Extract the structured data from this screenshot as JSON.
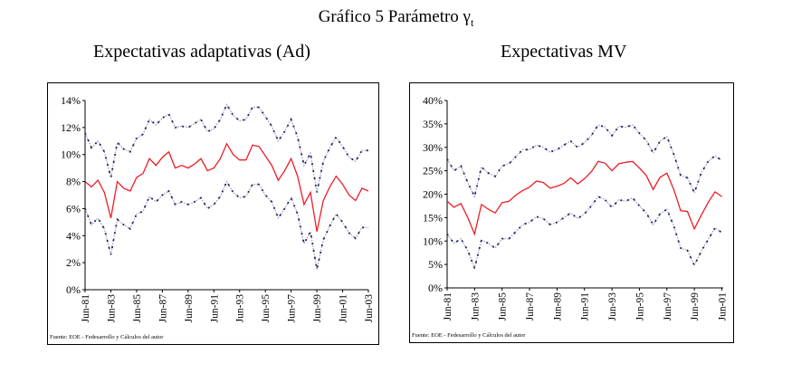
{
  "title": {
    "text": "Gráfico 5 Parámetro γ",
    "subscript": "t"
  },
  "colors": {
    "center": "#ee1c25",
    "band": "#1a1f6e",
    "band_light": "#9a9aa8"
  },
  "chart_data": [
    {
      "type": "line",
      "title": "Expectativas adaptativas (Ad)",
      "source": "Fuente: EOE - Fedesarrollo y Cálculos del autor",
      "xlabel": "",
      "ylabel": "",
      "xlim": [
        1981.5,
        2003.5
      ],
      "ylim": [
        0,
        14
      ],
      "yticks": [
        0,
        2,
        4,
        6,
        8,
        10,
        12,
        14
      ],
      "ytick_labels": [
        "0%",
        "2%",
        "4%",
        "6%",
        "8%",
        "10%",
        "12%",
        "14%"
      ],
      "xticks": [
        1981.5,
        1983.5,
        1985.5,
        1987.5,
        1989.5,
        1991.5,
        1993.5,
        1995.5,
        1997.5,
        1999.5,
        2001.5,
        2003.5
      ],
      "xtick_labels": [
        "Jun-81",
        "Jun-83",
        "Jun-85",
        "Jun-87",
        "Jun-89",
        "Jun-91",
        "Jun-93",
        "Jun-95",
        "Jun-97",
        "Jun-99",
        "Jun-01",
        "Jun-03"
      ],
      "x_start": 1981.5,
      "x_step": 0.5,
      "series": [
        {
          "name": "upper",
          "style": "dotted",
          "values": [
            11.6,
            10.5,
            11.0,
            10.2,
            8.3,
            10.9,
            10.4,
            10.2,
            11.2,
            11.5,
            12.6,
            12.2,
            12.7,
            13.0,
            12.0,
            12.1,
            12.0,
            12.3,
            12.6,
            11.7,
            11.9,
            12.6,
            13.7,
            12.9,
            12.5,
            12.6,
            13.5,
            13.5,
            12.8,
            12.1,
            11.0,
            11.7,
            12.6,
            11.3,
            9.2,
            10.1,
            7.2,
            9.5,
            10.5,
            11.3,
            10.6,
            9.8,
            9.5,
            10.3,
            10.3
          ]
        },
        {
          "name": "center",
          "style": "solid",
          "values": [
            8.0,
            7.6,
            8.1,
            7.2,
            5.3,
            8.0,
            7.5,
            7.3,
            8.3,
            8.6,
            9.7,
            9.2,
            9.8,
            10.2,
            9.0,
            9.2,
            9.0,
            9.3,
            9.7,
            8.8,
            9.0,
            9.7,
            10.8,
            10.0,
            9.6,
            9.6,
            10.7,
            10.6,
            9.9,
            9.2,
            8.1,
            8.8,
            9.7,
            8.4,
            6.3,
            7.2,
            4.3,
            6.6,
            7.6,
            8.4,
            7.8,
            7.0,
            6.6,
            7.5,
            7.3
          ]
        },
        {
          "name": "lower",
          "style": "dotted",
          "values": [
            6.0,
            4.8,
            5.3,
            4.5,
            2.6,
            5.2,
            4.8,
            4.5,
            5.6,
            5.8,
            6.9,
            6.5,
            7.0,
            7.3,
            6.3,
            6.5,
            6.3,
            6.5,
            6.8,
            6.0,
            6.3,
            6.9,
            8.0,
            7.2,
            6.8,
            6.9,
            7.8,
            7.8,
            7.0,
            6.5,
            5.3,
            6.0,
            6.8,
            5.6,
            3.4,
            4.3,
            1.5,
            3.7,
            4.7,
            5.6,
            5.0,
            4.2,
            3.8,
            4.6,
            4.6
          ]
        }
      ]
    },
    {
      "type": "line",
      "title": "Expectativas MV",
      "source": "Fuente: EOE - Fedesarrollo y Cálculos del autor",
      "xlabel": "",
      "ylabel": "",
      "xlim": [
        1981.5,
        2001.6
      ],
      "ylim": [
        0,
        40
      ],
      "yticks": [
        0,
        5,
        10,
        15,
        20,
        25,
        30,
        35,
        40
      ],
      "ytick_labels": [
        "0%",
        "5%",
        "10%",
        "15%",
        "20%",
        "25%",
        "30%",
        "35%",
        "40%"
      ],
      "xticks": [
        1981.5,
        1983.5,
        1985.5,
        1987.5,
        1989.5,
        1991.5,
        1993.5,
        1995.5,
        1997.5,
        1999.5,
        2001.5
      ],
      "xtick_labels": [
        "Jun-81",
        "Jun-83",
        "Jun-85",
        "Jun-87",
        "Jun-89",
        "Jun-91",
        "Jun-93",
        "Jun-95",
        "Jun-97",
        "Jun-99",
        "Jun-01"
      ],
      "x_start": 1981.5,
      "x_step": 0.5,
      "series": [
        {
          "name": "upper",
          "style": "dotted",
          "values": [
            27.5,
            25,
            26,
            22.5,
            19.5,
            25.8,
            24.5,
            23.8,
            26,
            26.5,
            28,
            29.5,
            29.5,
            30.5,
            30,
            29,
            29.5,
            30.5,
            31.3,
            30,
            31,
            32.5,
            34.8,
            34.3,
            32.5,
            34.5,
            34.3,
            34.8,
            33,
            31.5,
            28.8,
            31.3,
            32.3,
            28.5,
            24,
            23.5,
            20.3,
            24.5,
            27,
            28.2,
            27.2
          ]
        },
        {
          "name": "center",
          "style": "solid",
          "values": [
            18.5,
            17.2,
            18.0,
            15.0,
            11.5,
            17.8,
            16.8,
            16.0,
            18.2,
            18.5,
            19.8,
            20.8,
            21.5,
            22.8,
            22.5,
            21.3,
            21.7,
            22.3,
            23.5,
            22.2,
            23.3,
            24.8,
            27.0,
            26.6,
            25.0,
            26.5,
            26.8,
            27.0,
            25.6,
            24.0,
            21.0,
            23.6,
            24.5,
            21.0,
            16.5,
            16.3,
            12.6,
            15.5,
            18.2,
            20.5,
            19.5
          ]
        },
        {
          "name": "lower",
          "style": "dotted",
          "values": [
            11.5,
            9.5,
            10.5,
            8,
            4.2,
            10.2,
            9.5,
            8.5,
            10.5,
            10.5,
            12,
            13.5,
            14,
            15.2,
            14.8,
            13.5,
            14,
            15,
            16,
            14.8,
            15.8,
            17.5,
            19.5,
            18.8,
            17.2,
            18.8,
            18.5,
            19.2,
            17.5,
            16,
            13.5,
            15.8,
            16.8,
            13.2,
            8.5,
            8,
            4.8,
            7.8,
            10.3,
            12.8,
            11.8
          ]
        }
      ]
    }
  ]
}
